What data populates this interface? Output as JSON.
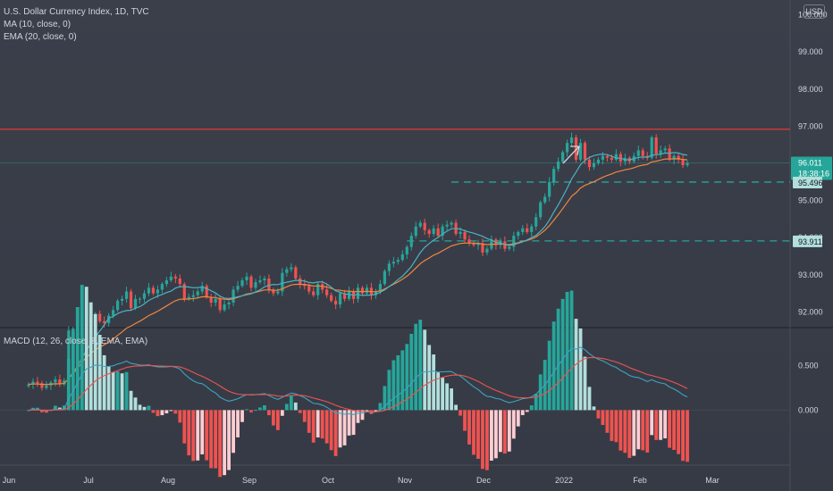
{
  "header": {
    "title": "U.S. Dollar Currency Index, 1D, TVC",
    "ma_label": "MA (10, close, 0)",
    "ema_label": "EMA (20, close, 0)",
    "currency_button": "USD"
  },
  "colors": {
    "up": "#26a69a",
    "down": "#ef5350",
    "ma_line": "#4bb3c4",
    "ema_line": "#f0873f",
    "macd_line": "#3aa5c1",
    "signal_line": "#ef5350",
    "resistance": "#e53935",
    "support_dash": "#26a69a",
    "hist_pos_strong": "#26a69a",
    "hist_pos_weak": "#b2dfdb",
    "hist_neg_strong": "#ef5350",
    "hist_neg_weak": "#ffcdd2",
    "last_price_bg": "#26a69a"
  },
  "chart_data": [
    {
      "type": "candlestick",
      "title": "U.S. Dollar Currency Index, 1D, TVC",
      "y_ticks": [
        "100.000",
        "99.000",
        "98.000",
        "97.000",
        "96.000",
        "95.000",
        "94.000",
        "93.000",
        "92.000"
      ],
      "ylim": [
        91.6,
        100.4
      ],
      "x_ticks": [
        "Jun",
        "Jul",
        "Aug",
        "Sep",
        "Oct",
        "Nov",
        "Dec",
        "2022",
        "Feb",
        "Mar"
      ],
      "resistance_level": 96.92,
      "support_levels": [
        {
          "value": 95.496,
          "label": "95.496"
        },
        {
          "value": 93.911,
          "label": "93.911"
        }
      ],
      "last_price": {
        "value": 96.011,
        "label": "96.011",
        "countdown": "18:38:16"
      },
      "series": [
        {
          "name": "MA (10, close, 0)",
          "type": "line"
        },
        {
          "name": "EMA (20, close, 0)",
          "type": "line"
        }
      ],
      "closes": [
        90.05,
        90.12,
        90.08,
        89.95,
        90.02,
        90.1,
        90.18,
        90.05,
        90.15,
        91.5,
        91.55,
        91.85,
        92.25,
        92.0,
        91.8,
        91.95,
        91.75,
        91.7,
        91.9,
        92.05,
        92.3,
        92.35,
        92.55,
        92.1,
        92.35,
        92.35,
        92.5,
        92.65,
        92.5,
        92.6,
        92.75,
        92.85,
        92.95,
        92.9,
        92.75,
        92.35,
        92.4,
        92.45,
        92.55,
        92.7,
        92.4,
        92.25,
        92.35,
        92.05,
        92.2,
        92.25,
        92.6,
        92.7,
        92.85,
        92.95,
        92.65,
        92.8,
        92.85,
        92.9,
        92.6,
        92.5,
        92.55,
        93.05,
        93.15,
        93.2,
        92.9,
        92.75,
        92.7,
        92.55,
        92.45,
        92.75,
        92.6,
        92.45,
        92.3,
        92.2,
        92.5,
        92.35,
        92.55,
        92.35,
        92.65,
        92.5,
        92.65,
        92.45,
        92.55,
        92.75,
        93.1,
        93.3,
        93.35,
        93.4,
        93.55,
        93.75,
        94.05,
        94.3,
        94.4,
        94.2,
        94.1,
        94.25,
        94.05,
        94.3,
        94.35,
        94.4,
        94.1,
        94.15,
        93.95,
        93.85,
        93.8,
        93.85,
        93.6,
        93.7,
        93.95,
        93.8,
        93.9,
        93.7,
        93.75,
        94.05,
        94.15,
        94.25,
        94.15,
        94.3,
        94.55,
        94.95,
        95.1,
        95.5,
        95.85,
        96.05,
        96.3,
        96.55,
        96.7,
        96.1,
        96.55,
        96.1,
        95.9,
        96.0,
        96.1,
        96.2,
        96.15,
        96.1,
        96.25,
        96.05,
        96.15,
        96.05,
        96.2,
        96.35,
        96.2,
        96.15,
        96.7,
        96.25,
        96.35,
        96.4,
        96.1,
        96.2,
        96.1,
        95.95,
        96.01
      ]
    },
    {
      "type": "macd",
      "title": "MACD (12, 26, close, 9, EMA, EMA)",
      "y_ticks": [
        "0.500",
        "0.000"
      ],
      "ylim": [
        -0.62,
        0.92
      ],
      "series": [
        {
          "name": "MACD",
          "type": "line"
        },
        {
          "name": "Signal",
          "type": "line"
        },
        {
          "name": "Histogram",
          "type": "bar"
        }
      ]
    }
  ]
}
